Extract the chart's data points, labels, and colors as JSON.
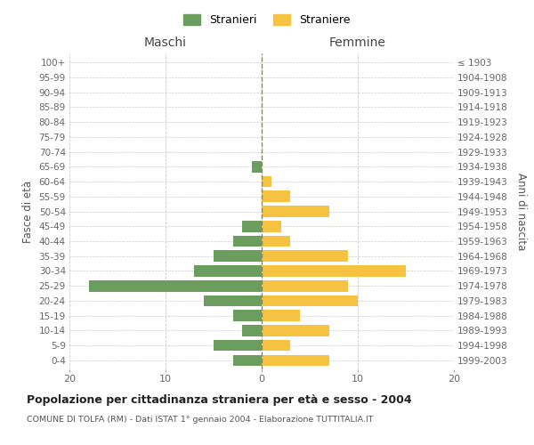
{
  "age_groups": [
    "0-4",
    "5-9",
    "10-14",
    "15-19",
    "20-24",
    "25-29",
    "30-34",
    "35-39",
    "40-44",
    "45-49",
    "50-54",
    "55-59",
    "60-64",
    "65-69",
    "70-74",
    "75-79",
    "80-84",
    "85-89",
    "90-94",
    "95-99",
    "100+"
  ],
  "birth_years": [
    "1999-2003",
    "1994-1998",
    "1989-1993",
    "1984-1988",
    "1979-1983",
    "1974-1978",
    "1969-1973",
    "1964-1968",
    "1959-1963",
    "1954-1958",
    "1949-1953",
    "1944-1948",
    "1939-1943",
    "1934-1938",
    "1929-1933",
    "1924-1928",
    "1919-1923",
    "1914-1918",
    "1909-1913",
    "1904-1908",
    "≤ 1903"
  ],
  "males": [
    3,
    5,
    2,
    3,
    6,
    18,
    7,
    5,
    3,
    2,
    0,
    0,
    0,
    1,
    0,
    0,
    0,
    0,
    0,
    0,
    0
  ],
  "females": [
    7,
    3,
    7,
    4,
    10,
    9,
    15,
    9,
    3,
    2,
    7,
    3,
    1,
    0,
    0,
    0,
    0,
    0,
    0,
    0,
    0
  ],
  "male_color": "#6b9e5e",
  "female_color": "#f5c242",
  "title": "Popolazione per cittadinanza straniera per età e sesso - 2004",
  "subtitle": "COMUNE DI TOLFA (RM) - Dati ISTAT 1° gennaio 2004 - Elaborazione TUTTITALIA.IT",
  "ylabel_left": "Fasce di età",
  "ylabel_right": "Anni di nascita",
  "xlabel_left": "Maschi",
  "xlabel_right": "Femmine",
  "legend_stranieri": "Stranieri",
  "legend_straniere": "Straniere",
  "xlim": 20,
  "background_color": "#ffffff",
  "grid_color": "#cccccc"
}
